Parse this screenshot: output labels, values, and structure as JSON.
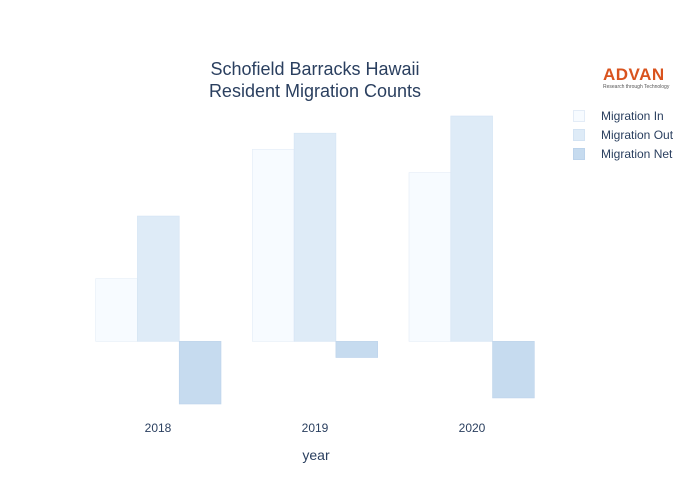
{
  "chart_data": {
    "type": "bar",
    "title_lines": [
      "Schofield Barracks Hawaii",
      "Resident Migration Counts"
    ],
    "xlabel": "year",
    "ylabel": "",
    "categories": [
      "2018",
      "2019",
      "2020"
    ],
    "series": [
      {
        "name": "Migration In",
        "values": [
          620,
          1900,
          1670
        ],
        "color": "#f7fbff",
        "stroke": "#e3ecf7"
      },
      {
        "name": "Migration Out",
        "values": [
          1240,
          2060,
          2230
        ],
        "color": "#deebf7",
        "stroke": "#d3e3f3"
      },
      {
        "name": "Migration Net",
        "values": [
          -620,
          -160,
          -560
        ],
        "color": "#c6dbef",
        "stroke": "#bcd3eb"
      }
    ],
    "ylim": [
      -620,
      2230
    ],
    "grid": false,
    "legend_position": "top-right"
  },
  "logo": {
    "name": "ADVAN",
    "tagline": "Research through Technology"
  }
}
